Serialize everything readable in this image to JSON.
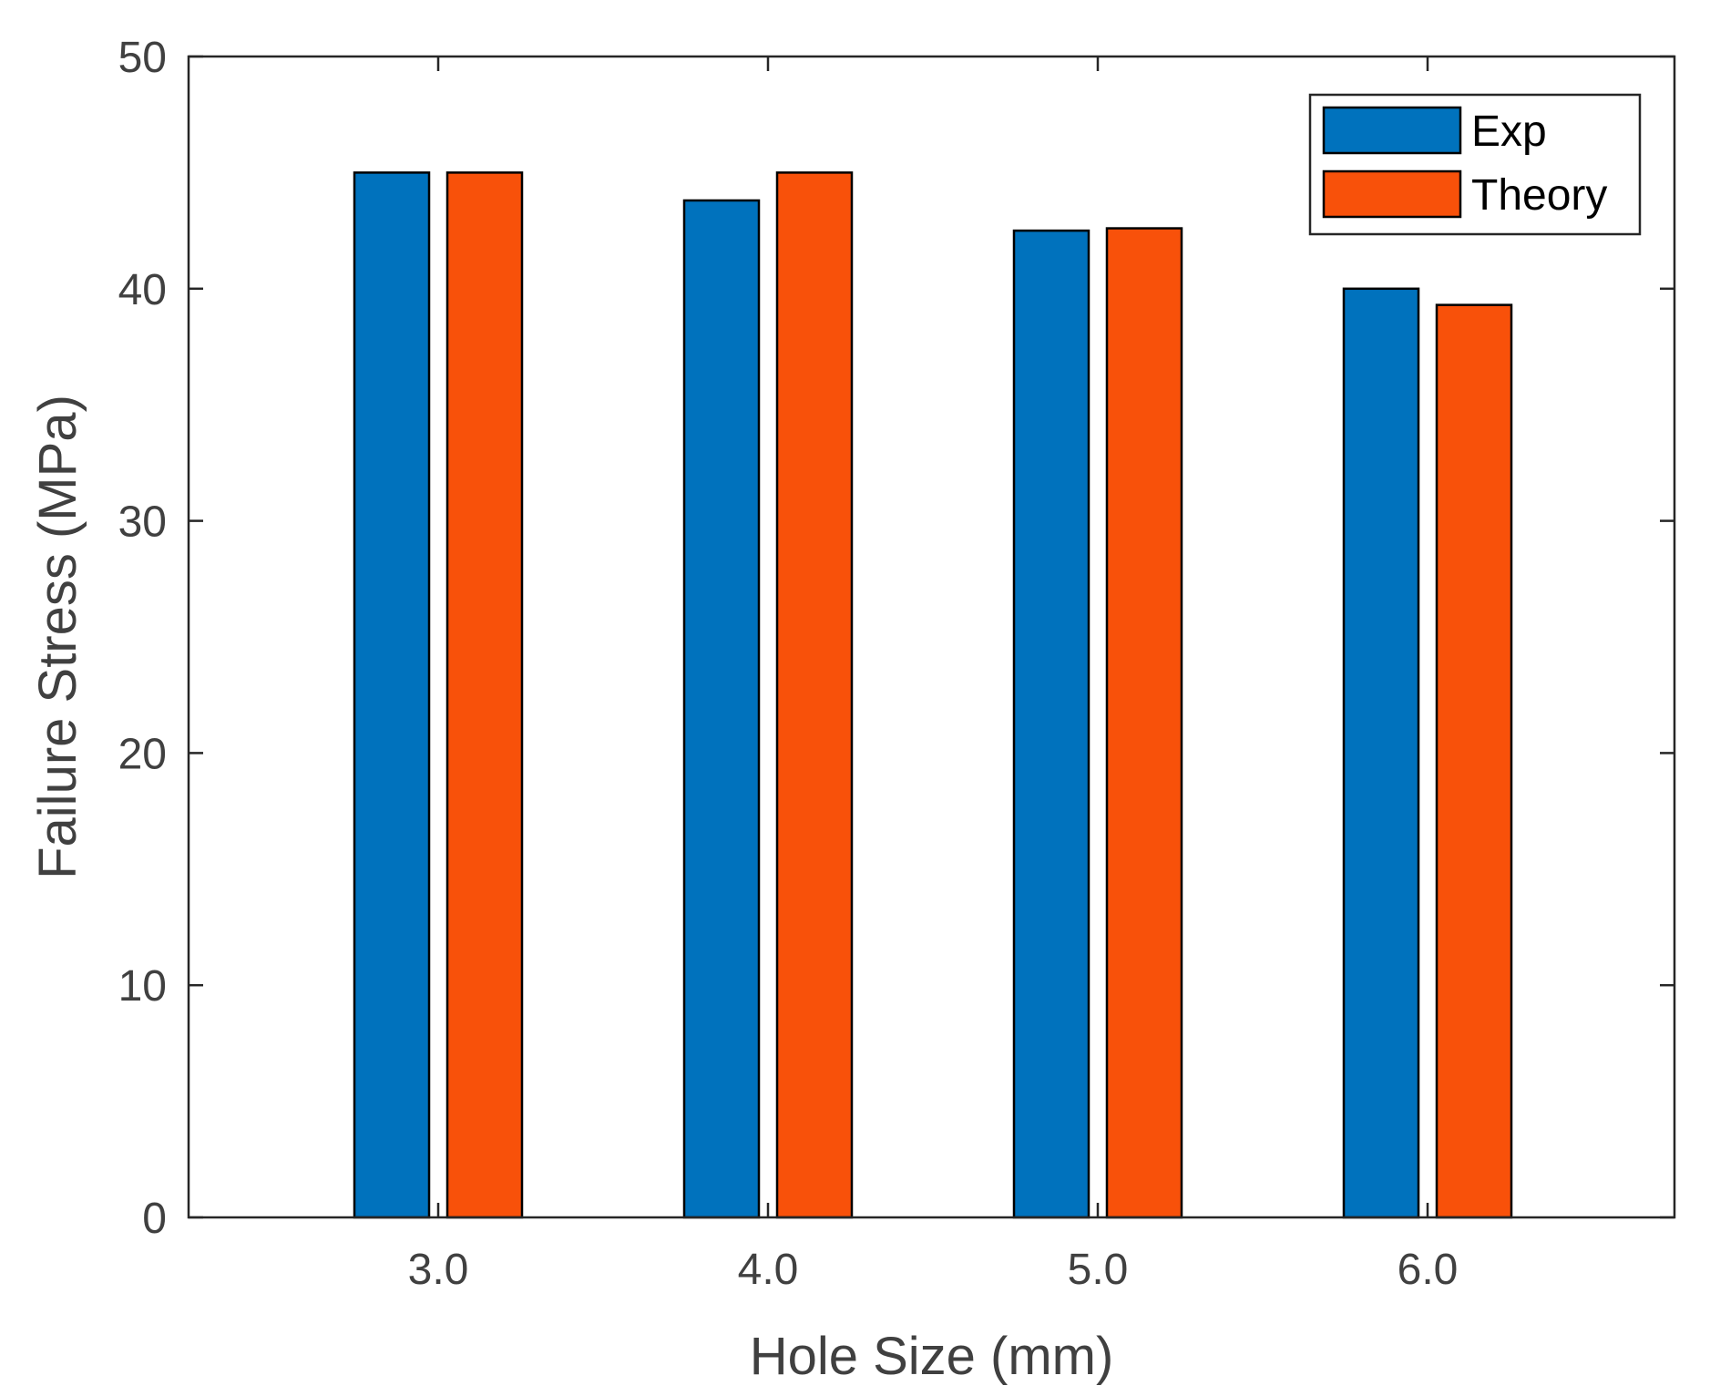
{
  "chart_data": {
    "type": "bar",
    "title": "",
    "xlabel": "Hole Size (mm)",
    "ylabel": "Failure Stress (MPa)",
    "categories": [
      "3.0",
      "4.0",
      "5.0",
      "6.0"
    ],
    "series": [
      {
        "name": "Exp",
        "color": "#0072BD",
        "values": [
          45.0,
          43.8,
          42.5,
          40.0
        ]
      },
      {
        "name": "Theory",
        "color": "#F8510A",
        "values": [
          45.0,
          45.0,
          42.6,
          39.3
        ]
      }
    ],
    "ylim": [
      0,
      50
    ],
    "yticks": [
      "0",
      "10",
      "20",
      "30",
      "40",
      "50"
    ],
    "legend": {
      "placement": "top-right"
    },
    "grid": false
  }
}
